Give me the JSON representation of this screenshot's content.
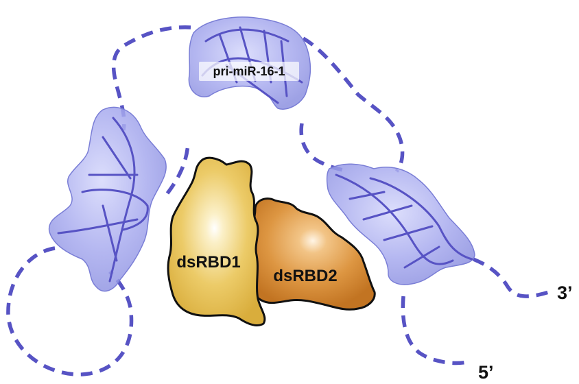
{
  "diagram": {
    "rna_label": "pri-miR-16-1",
    "domains": [
      {
        "label": "dsRBD1",
        "color": "#e8c45a"
      },
      {
        "label": "dsRBD2",
        "color": "#d58d32"
      }
    ],
    "ends": {
      "three_prime": "3’",
      "five_prime": "5’"
    },
    "colors": {
      "rna_strand": "#5753c4",
      "rna_surface": "#9a9ee8",
      "outline": "#111111"
    }
  }
}
